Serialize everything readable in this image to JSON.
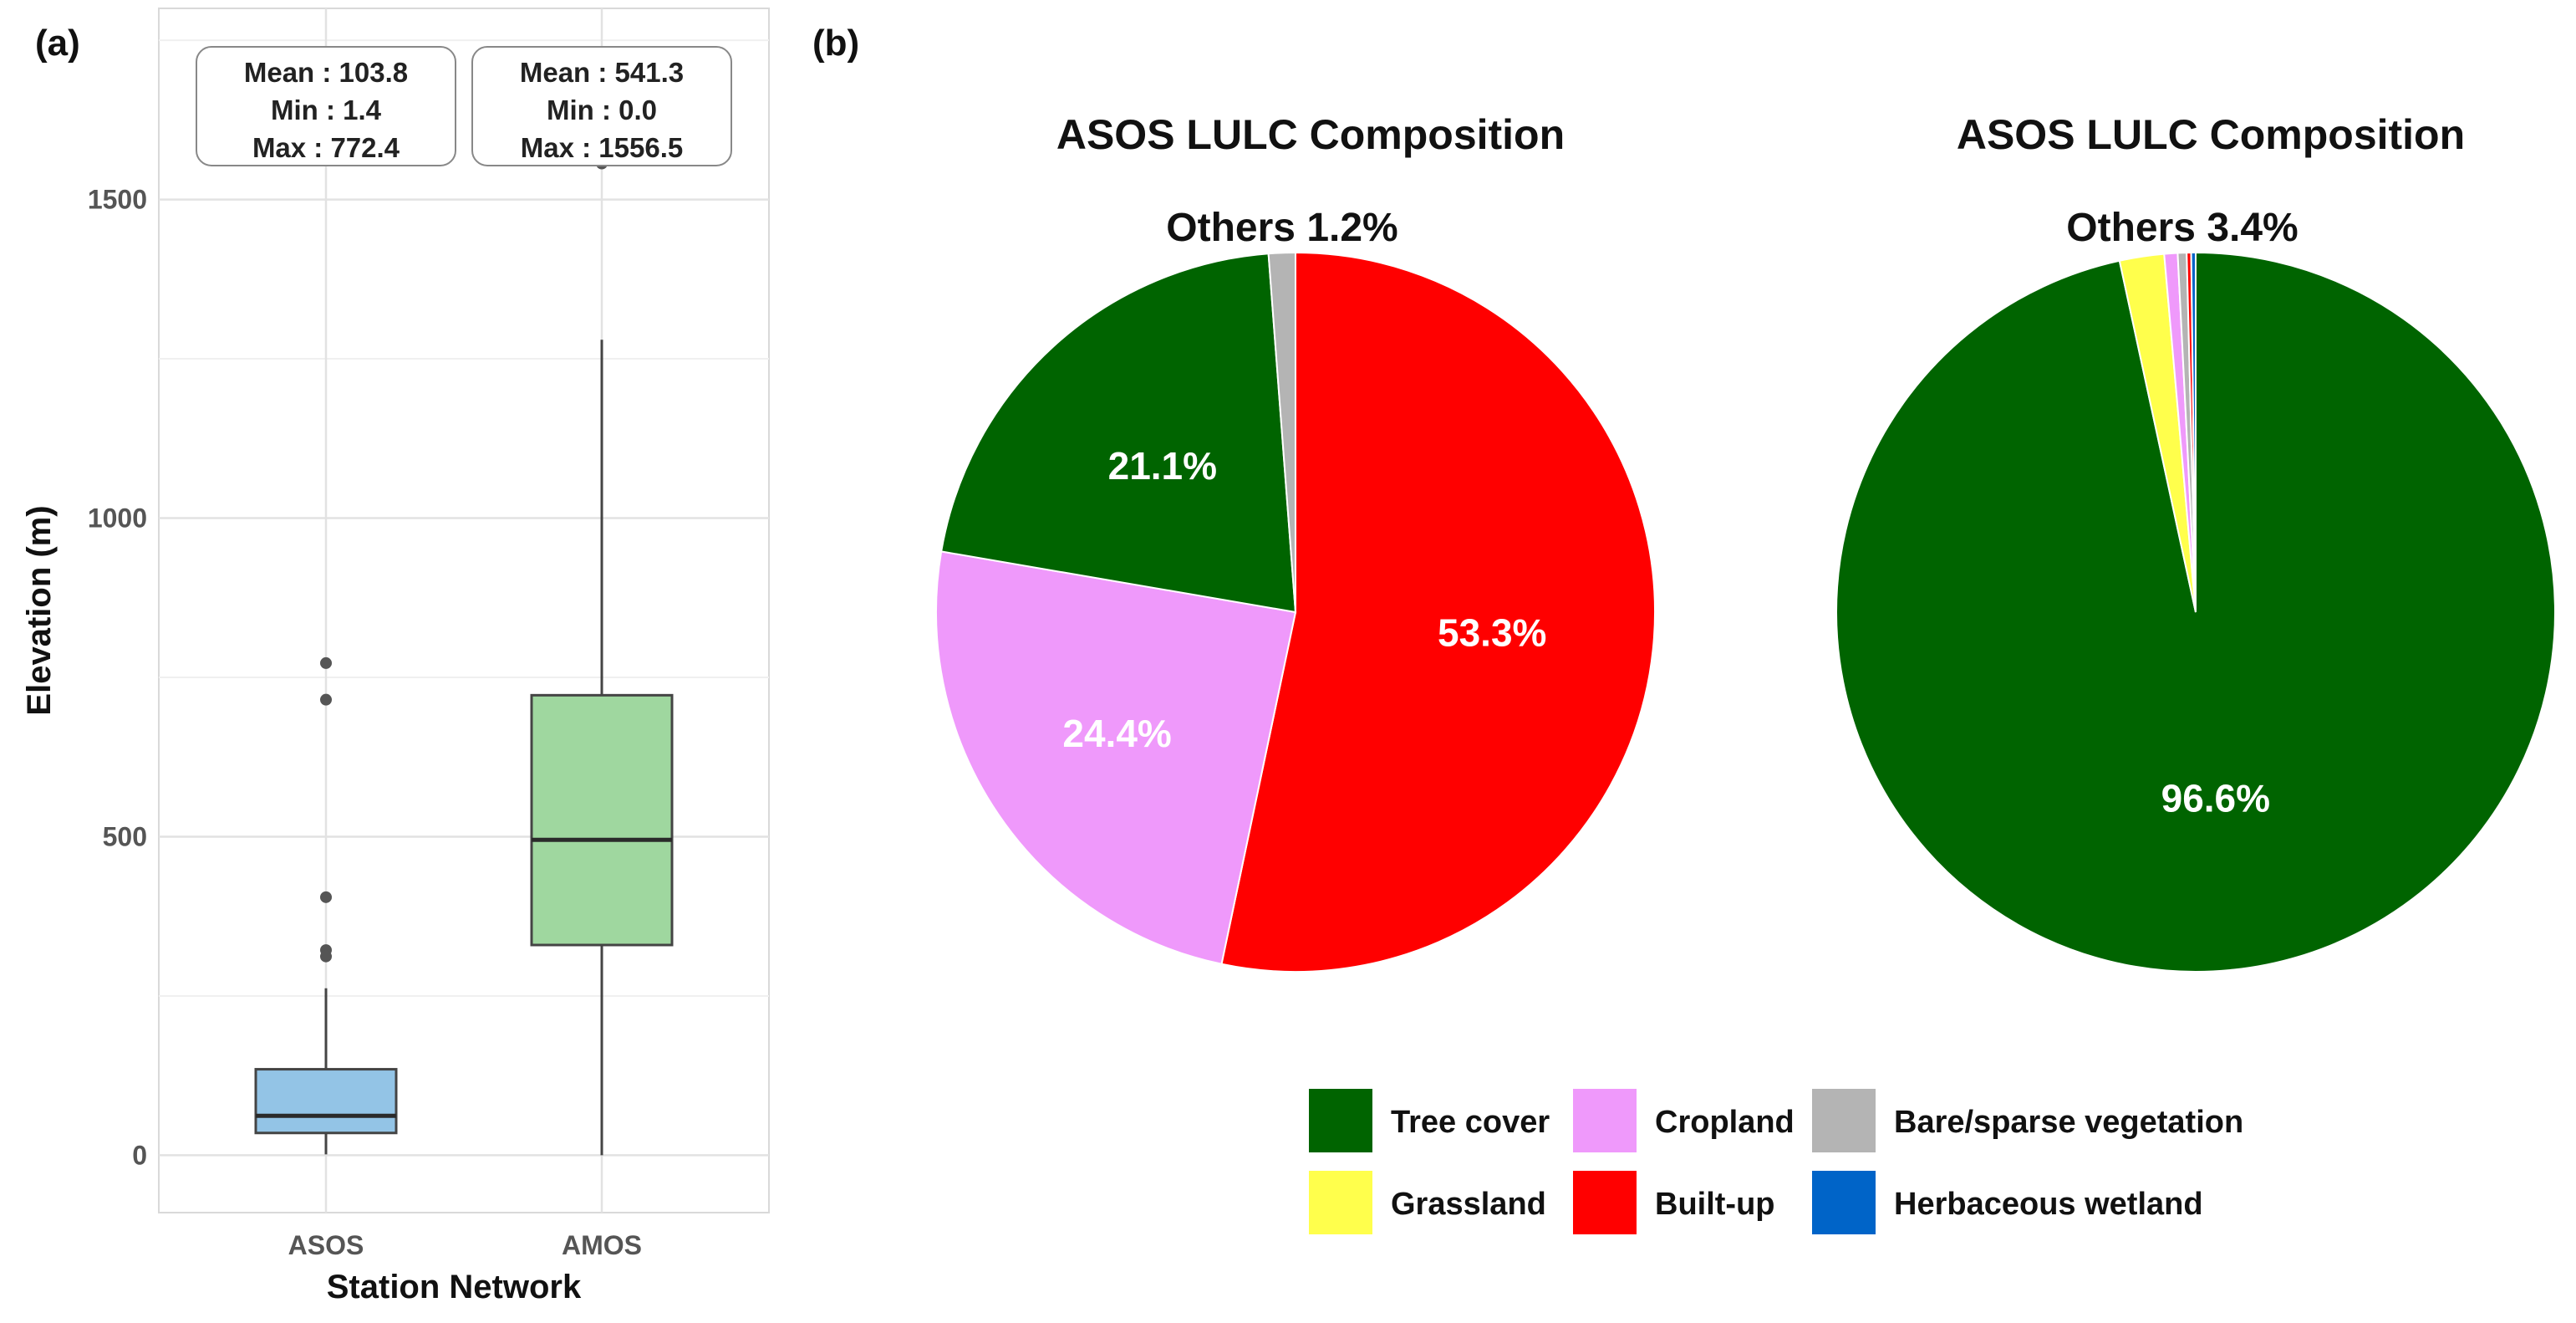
{
  "panels": {
    "a": "(a)",
    "b": "(b)"
  },
  "chart_data": [
    {
      "type": "box",
      "xlabel": "Station Network",
      "ylabel": "Elevation (m)",
      "ylim": [
        -90,
        1800
      ],
      "yticks": [
        0,
        500,
        1000,
        1500
      ],
      "categories": [
        "ASOS",
        "AMOS"
      ],
      "colors": [
        "#93c4e6",
        "#9fd79f"
      ],
      "boxes": [
        {
          "name": "ASOS",
          "whisker_low": 1.4,
          "q1": 35,
          "median": 62,
          "q3": 135,
          "whisker_high": 262,
          "outliers": [
            772.4,
            715,
            405,
            322,
            312
          ],
          "stats": {
            "mean": "Mean : 103.8",
            "min": "Min : 1.4",
            "max": "Max : 772.4"
          }
        },
        {
          "name": "AMOS",
          "whisker_low": 0.0,
          "q1": 330,
          "median": 495,
          "q3": 722,
          "whisker_high": 1280,
          "outliers": [
            1556.5
          ],
          "stats": {
            "mean": "Mean : 541.3",
            "min": "Min : 0.0",
            "max": "Max : 1556.5"
          }
        }
      ]
    },
    {
      "type": "pie",
      "title": "ASOS LULC Composition",
      "others_label": "Others 1.2%",
      "slices": [
        {
          "name": "Built-up",
          "value": 53.3,
          "color": "#ff0000",
          "label": "53.3%"
        },
        {
          "name": "Cropland",
          "value": 24.4,
          "color": "#ef99fb",
          "label": "24.4%"
        },
        {
          "name": "Tree cover",
          "value": 21.1,
          "color": "#006400",
          "label": "21.1%"
        },
        {
          "name": "Bare/sparse vegetation",
          "value": 1.2,
          "color": "#b4b4b4",
          "label": ""
        }
      ]
    },
    {
      "type": "pie",
      "title": "ASOS LULC Composition",
      "others_label": "Others 3.4%",
      "slices": [
        {
          "name": "Tree cover",
          "value": 96.6,
          "color": "#006400",
          "label": "96.6%"
        },
        {
          "name": "Grassland",
          "value": 2.0,
          "color": "#ffff4c",
          "label": ""
        },
        {
          "name": "Cropland",
          "value": 0.6,
          "color": "#ef99fb",
          "label": ""
        },
        {
          "name": "Bare/sparse vegetation",
          "value": 0.4,
          "color": "#b4b4b4",
          "label": ""
        },
        {
          "name": "Built-up",
          "value": 0.2,
          "color": "#ff0000",
          "label": ""
        },
        {
          "name": "Herbaceous wetland",
          "value": 0.2,
          "color": "#0064c8",
          "label": ""
        }
      ]
    }
  ],
  "legend": [
    {
      "label": "Tree cover",
      "color": "#006400"
    },
    {
      "label": "Cropland",
      "color": "#ef99fb"
    },
    {
      "label": "Bare/sparse vegetation",
      "color": "#b4b4b4"
    },
    {
      "label": "Grassland",
      "color": "#ffff4c"
    },
    {
      "label": "Built-up",
      "color": "#ff0000"
    },
    {
      "label": "Herbaceous wetland",
      "color": "#0064c8"
    }
  ]
}
